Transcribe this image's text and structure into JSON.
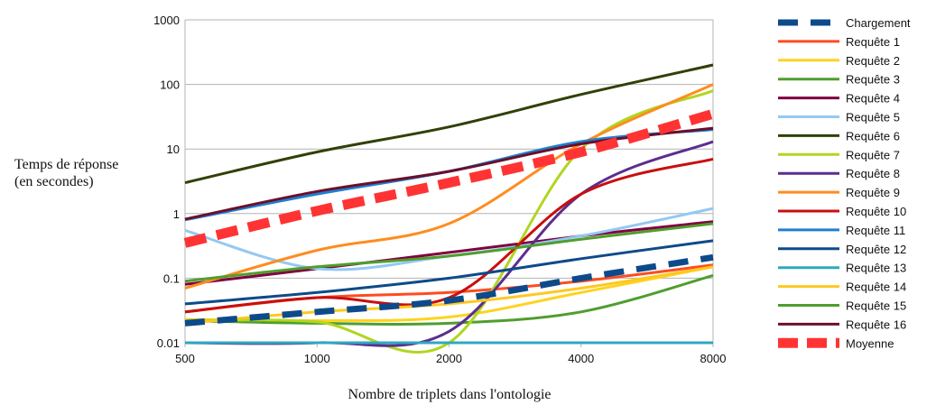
{
  "chart_data": {
    "type": "line",
    "title": "",
    "xlabel": "Nombre de triplets dans l'ontologie",
    "ylabel": [
      "Temps de réponse",
      "(en secondes)"
    ],
    "x": [
      500,
      1000,
      2000,
      4000,
      8000
    ],
    "x_tick_labels": [
      "500",
      "1000",
      "2000",
      "4000",
      "8000"
    ],
    "x_scale": "log2",
    "y_scale": "log10",
    "ylim": [
      0.01,
      1000
    ],
    "y_tick_labels": [
      "0.01",
      "0.1",
      "1",
      "10",
      "100",
      "1000"
    ],
    "grid": "horizontal major lines",
    "legend_position": "right",
    "series": [
      {
        "name": "Chargement",
        "color": "#0d4a8a",
        "dash": "long",
        "values": [
          0.02,
          0.03,
          0.045,
          0.1,
          0.21
        ]
      },
      {
        "name": "Requête 1",
        "color": "#ff4b1f",
        "values": [
          0.03,
          0.05,
          0.06,
          0.09,
          0.16
        ]
      },
      {
        "name": "Requête 2",
        "color": "#ffd21f",
        "values": [
          0.023,
          0.022,
          0.025,
          0.06,
          0.15
        ]
      },
      {
        "name": "Requête 3",
        "color": "#4f9e2d",
        "values": [
          0.022,
          0.02,
          0.02,
          0.03,
          0.11
        ]
      },
      {
        "name": "Requête 4",
        "color": "#800040",
        "values": [
          0.08,
          0.14,
          0.25,
          0.45,
          0.75
        ]
      },
      {
        "name": "Requête 5",
        "color": "#93c9f2",
        "values": [
          0.55,
          0.14,
          0.22,
          0.45,
          1.2
        ]
      },
      {
        "name": "Requête 6",
        "color": "#314006",
        "values": [
          3,
          9,
          22,
          70,
          200
        ]
      },
      {
        "name": "Requête 7",
        "color": "#b0d620",
        "values": [
          0.022,
          0.021,
          0.01,
          10,
          80
        ]
      },
      {
        "name": "Requête 8",
        "color": "#5c2d8f",
        "values": [
          0.01,
          0.01,
          0.015,
          2,
          13
        ]
      },
      {
        "name": "Requête 9",
        "color": "#ff8c1f",
        "values": [
          0.07,
          0.27,
          0.7,
          12,
          100
        ]
      },
      {
        "name": "Requête 10",
        "color": "#c80f0f",
        "values": [
          0.03,
          0.05,
          0.05,
          2,
          7
        ]
      },
      {
        "name": "Requête 11",
        "color": "#1f7fd1",
        "values": [
          0.8,
          2,
          4.5,
          13,
          20
        ]
      },
      {
        "name": "Requête 12",
        "color": "#0d4a8a",
        "values": [
          0.04,
          0.06,
          0.1,
          0.2,
          0.38
        ]
      },
      {
        "name": "Requête 13",
        "color": "#2fa8bf",
        "values": [
          0.01,
          0.01,
          0.01,
          0.01,
          0.01
        ]
      },
      {
        "name": "Requête 14",
        "color": "#ffc81f",
        "values": [
          0.02,
          0.03,
          0.04,
          0.07,
          0.15
        ]
      },
      {
        "name": "Requête 15",
        "color": "#4f9e2d",
        "values": [
          0.09,
          0.15,
          0.22,
          0.4,
          0.7
        ]
      },
      {
        "name": "Requête 16",
        "color": "#6b0f2b",
        "values": [
          0.82,
          2.2,
          4.5,
          12,
          21
        ]
      },
      {
        "name": "Moyenne",
        "color": "#ff3333",
        "dash": "thick",
        "values": [
          0.35,
          1.1,
          3,
          9,
          35
        ]
      }
    ]
  }
}
